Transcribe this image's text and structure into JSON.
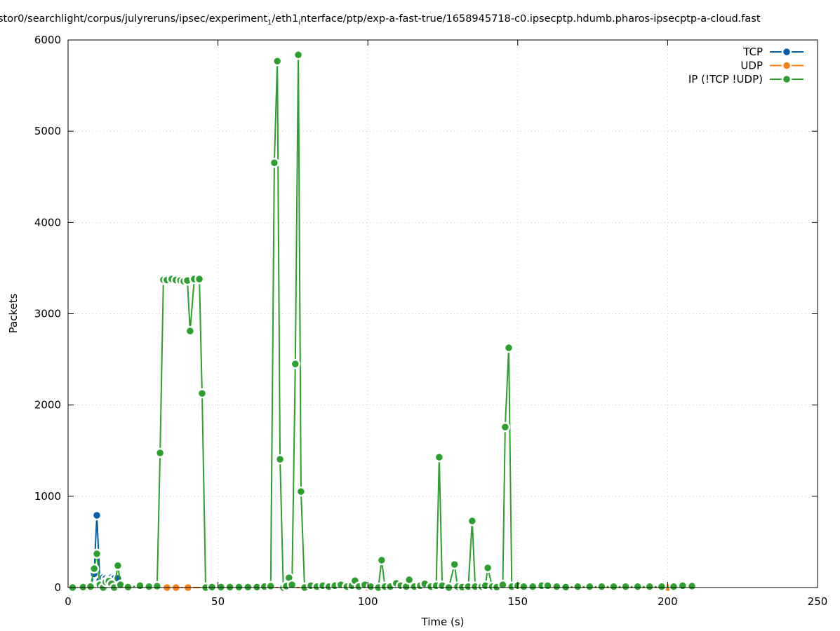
{
  "chart_data": {
    "type": "line",
    "title_parts": [
      "stor0/searchlight/corpus/julyreruns/ipsec/experiment",
      "1",
      "/eth1",
      "i",
      "nterface/ptp/exp-a-fast-true/1658945718-c0.ipsecptp.hdumb.pharos-ipsecptp-a-cloud.fast"
    ],
    "xlabel": "Time (s)",
    "ylabel": "Packets",
    "xlim": [
      0,
      250
    ],
    "ylim": [
      0,
      6000
    ],
    "xticks": [
      0,
      50,
      100,
      150,
      200,
      250
    ],
    "yticks": [
      0,
      1000,
      2000,
      3000,
      4000,
      5000,
      6000
    ],
    "grid": true,
    "legend_position": "top-right",
    "series": [
      {
        "name": "TCP",
        "color": "#0060ad",
        "x": [
          5,
          7.5,
          8.7,
          9.6,
          10.6,
          11.7,
          12.6,
          13.6,
          14.5,
          15.4,
          16.6,
          17.5
        ],
        "y": [
          0,
          10,
          150,
          791,
          80,
          110,
          100,
          90,
          110,
          100,
          100,
          20
        ]
      },
      {
        "name": "UDP",
        "color": "#ff7f0e",
        "x": [
          33,
          36,
          40,
          60,
          100,
          150,
          200
        ],
        "y": [
          0,
          0,
          0,
          0,
          0,
          0,
          0
        ]
      },
      {
        "name": "IP (!TCP  !UDP)",
        "color": "#2ca02c",
        "x": [
          1.5,
          5,
          7.5,
          8.7,
          9.6,
          10.6,
          11.7,
          12.6,
          13.6,
          14.5,
          15.4,
          16.6,
          17.5,
          20,
          24,
          27,
          29.7,
          30.7,
          31.8,
          33,
          34.6,
          36,
          37.5,
          38.6,
          39.8,
          40.7,
          42.1,
          43.8,
          44.7,
          45.9,
          48,
          51,
          54,
          57,
          60,
          63,
          65.5,
          67.6,
          68.8,
          69.8,
          70.7,
          71.8,
          72.8,
          73.7,
          74.7,
          75.8,
          76.8,
          77.7,
          78.9,
          81,
          83,
          85,
          87,
          89,
          91,
          93,
          94.7,
          95.7,
          97,
          99,
          101,
          103.5,
          104.6,
          105.7,
          107.5,
          109.5,
          111,
          112.8,
          113.8,
          115.5,
          117.5,
          119,
          121,
          122.8,
          123.8,
          124.8,
          127,
          128.9,
          129.9,
          131.5,
          133.5,
          134.8,
          135.8,
          138,
          139.2,
          140,
          141.5,
          143,
          145,
          145.8,
          147,
          148,
          150,
          152,
          155,
          158,
          160,
          163,
          166,
          170,
          174,
          178,
          182,
          186,
          190,
          194,
          198,
          202,
          205,
          208.1
        ],
        "y": [
          0,
          5,
          10,
          207,
          370,
          30,
          0,
          60,
          70,
          40,
          0,
          240,
          30,
          5,
          20,
          10,
          15,
          1475,
          3372,
          3370,
          3380,
          3370,
          3365,
          3356,
          3364,
          2811,
          3380,
          3380,
          2127,
          0,
          5,
          5,
          5,
          5,
          5,
          5,
          10,
          15,
          4654,
          5768,
          1405,
          0,
          15,
          107,
          30,
          2450,
          5837,
          1052,
          0,
          20,
          10,
          20,
          10,
          20,
          30,
          10,
          20,
          75,
          10,
          30,
          10,
          0,
          300,
          10,
          10,
          46,
          20,
          10,
          85,
          10,
          20,
          40,
          10,
          20,
          1428,
          20,
          0,
          253,
          10,
          5,
          10,
          730,
          10,
          10,
          20,
          215,
          10,
          5,
          30,
          1758,
          2627,
          10,
          20,
          10,
          10,
          20,
          20,
          10,
          5,
          10,
          10,
          10,
          10,
          10,
          10,
          10,
          10,
          10,
          20,
          15
        ]
      }
    ]
  }
}
